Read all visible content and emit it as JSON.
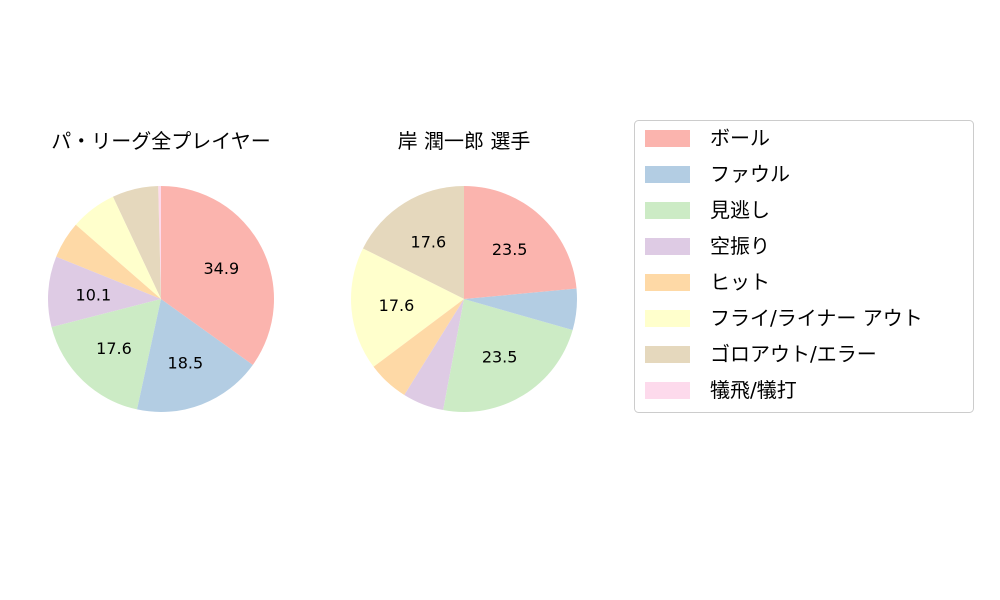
{
  "chart_data": [
    {
      "type": "pie",
      "title": "パ・リーグ全プレイヤー",
      "start_angle": "top",
      "direction": "clockwise",
      "slices": [
        {
          "label": "ボール",
          "value": 34.9,
          "data_label": "34.9",
          "color": "#fbb4ae"
        },
        {
          "label": "ファウル",
          "value": 18.5,
          "data_label": "18.5",
          "color": "#b3cde3"
        },
        {
          "label": "見逃し",
          "value": 17.6,
          "data_label": "17.6",
          "color": "#ccebc5"
        },
        {
          "label": "空振り",
          "value": 10.1,
          "data_label": "10.1",
          "color": "#decbe4"
        },
        {
          "label": "ヒット",
          "value": 5.3,
          "data_label": "",
          "color": "#fed9a6"
        },
        {
          "label": "フライ/ライナー アウト",
          "value": 6.6,
          "data_label": "",
          "color": "#ffffcc"
        },
        {
          "label": "ゴロアウト/エラー",
          "value": 6.6,
          "data_label": "",
          "color": "#e5d8bd"
        },
        {
          "label": "犠飛/犠打",
          "value": 0.4,
          "data_label": "",
          "color": "#fddaec"
        }
      ]
    },
    {
      "type": "pie",
      "title": "岸 潤一郎  選手",
      "start_angle": "top",
      "direction": "clockwise",
      "slices": [
        {
          "label": "ボール",
          "value": 23.5,
          "data_label": "23.5",
          "color": "#fbb4ae"
        },
        {
          "label": "ファウル",
          "value": 5.9,
          "data_label": "",
          "color": "#b3cde3"
        },
        {
          "label": "見逃し",
          "value": 23.5,
          "data_label": "23.5",
          "color": "#ccebc5"
        },
        {
          "label": "空振り",
          "value": 5.9,
          "data_label": "",
          "color": "#decbe4"
        },
        {
          "label": "ヒット",
          "value": 5.9,
          "data_label": "",
          "color": "#fed9a6"
        },
        {
          "label": "フライ/ライナー アウト",
          "value": 17.6,
          "data_label": "17.6",
          "color": "#ffffcc"
        },
        {
          "label": "ゴロアウト/エラー",
          "value": 17.6,
          "data_label": "17.6",
          "color": "#e5d8bd"
        },
        {
          "label": "犠飛/犠打",
          "value": 0,
          "data_label": "",
          "color": "#fddaec"
        }
      ]
    }
  ],
  "legend": {
    "placement": "right",
    "items": [
      {
        "label": "ボール",
        "color": "#fbb4ae"
      },
      {
        "label": "ファウル",
        "color": "#b3cde3"
      },
      {
        "label": "見逃し",
        "color": "#ccebc5"
      },
      {
        "label": "空振り",
        "color": "#decbe4"
      },
      {
        "label": "ヒット",
        "color": "#fed9a6"
      },
      {
        "label": "フライ/ライナー アウト",
        "color": "#ffffcc"
      },
      {
        "label": "ゴロアウト/エラー",
        "color": "#e5d8bd"
      },
      {
        "label": "犠飛/犠打",
        "color": "#fddaec"
      }
    ]
  }
}
